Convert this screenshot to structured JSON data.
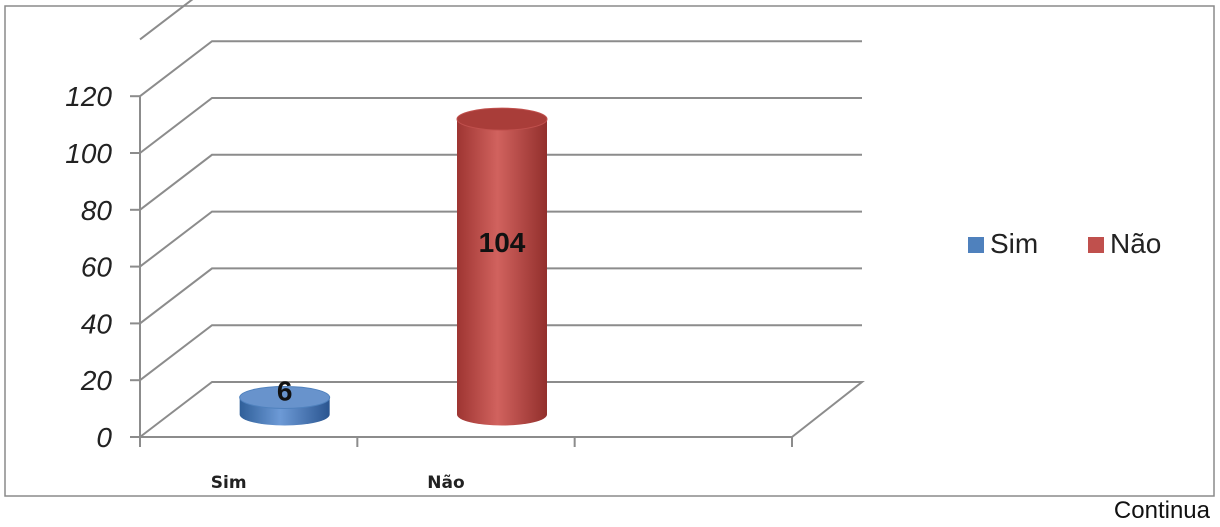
{
  "chart_data": {
    "type": "bar",
    "style": "3d-cylinder",
    "categories": [
      "Sim",
      "Não"
    ],
    "values": [
      6,
      104
    ],
    "colors": [
      "#4f81bd",
      "#c0504d"
    ],
    "data_labels": [
      "6",
      "104"
    ],
    "y_ticks": [
      "0",
      "20",
      "40",
      "60",
      "80",
      "100",
      "120"
    ],
    "ylim": [
      0,
      140
    ],
    "grid": true,
    "legend": {
      "position": "right",
      "entries": [
        "Sim",
        "Não"
      ]
    },
    "title": "",
    "xlabel": "",
    "ylabel": ""
  },
  "footer": {
    "note": "Continua"
  }
}
